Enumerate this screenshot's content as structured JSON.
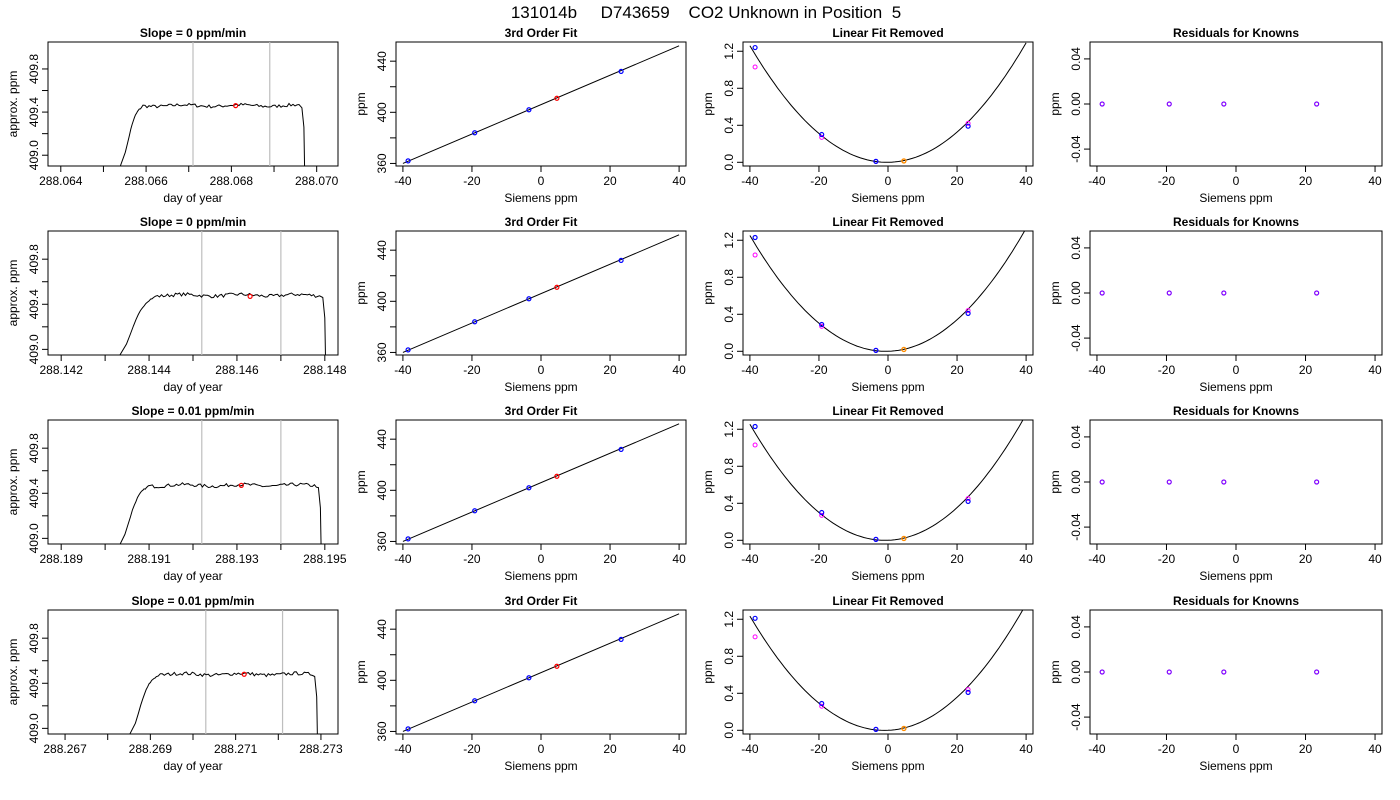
{
  "figure": {
    "title": "131014b     D743659    CO2 Unknown in Position  5"
  },
  "colors": {
    "trace": "#000000",
    "vline": "#bebebe",
    "known_fit": "#0000ff",
    "known_raw": "#ff00ff",
    "unknown_fit": "#ff8c00",
    "unknown_raw": "#ff0000",
    "residual": "#8000ff"
  },
  "chart_data": [
    {
      "type": "line",
      "panel": "trace",
      "row": 1,
      "title": "Slope =  0  ppm/min",
      "xlabel": "day of year",
      "ylabel": "approx. ppm",
      "xlim": [
        288.0637,
        288.0705
      ],
      "ylim": [
        408.9,
        410.05
      ],
      "xticks": [
        "288.064",
        "288.066",
        "288.068",
        "288.070"
      ],
      "yticks": [
        "409.0",
        "409.4",
        "409.8"
      ],
      "vlines": [
        288.0671,
        288.0689
      ],
      "marker": [
        288.0681,
        409.46
      ],
      "trace": {
        "x_start": 288.0654,
        "x_plateau": 288.0657,
        "x_end": 288.0697,
        "plateau": 409.46
      }
    },
    {
      "type": "scatter",
      "panel": "fit",
      "row": 1,
      "title": "3rd Order Fit",
      "xlabel": "Siemens ppm",
      "ylabel": "ppm",
      "xlim": [
        -42,
        42
      ],
      "ylim": [
        358,
        455
      ],
      "xticks": [
        "-40",
        "-20",
        "0",
        "20",
        "40"
      ],
      "yticks": [
        "360",
        "400",
        "440"
      ],
      "line": [
        [
          -40,
          360
        ],
        [
          40,
          452
        ]
      ],
      "knowns": [
        [
          -38.5,
          362
        ],
        [
          -19.2,
          384
        ],
        [
          -3.5,
          402
        ],
        [
          23.2,
          432
        ]
      ],
      "unknown": [
        4.6,
        411
      ]
    },
    {
      "type": "scatter",
      "panel": "linear",
      "row": 1,
      "title": "Linear Fit Removed",
      "xlabel": "Siemens ppm",
      "ylabel": "ppm",
      "xlim": [
        -42,
        42
      ],
      "ylim": [
        -0.04,
        1.3
      ],
      "xticks": [
        "-40",
        "-20",
        "0",
        "20",
        "40"
      ],
      "yticks": [
        "0.0",
        "0.4",
        "0.8",
        "1.2"
      ],
      "curve": {
        "a": 0.000797,
        "b": 0.000377,
        "x0": -40,
        "x1": 40
      },
      "knowns_fit": [
        [
          -38.5,
          1.24
        ],
        [
          -19.2,
          0.3
        ],
        [
          -3.5,
          0.01
        ],
        [
          23.2,
          0.39
        ]
      ],
      "knowns_raw": [
        [
          -38.5,
          1.03
        ],
        [
          -19.2,
          0.27
        ],
        [
          -3.5,
          0.01
        ],
        [
          23.2,
          0.42
        ]
      ],
      "unknown": [
        4.6,
        0.015
      ]
    },
    {
      "type": "scatter",
      "panel": "resid",
      "row": 1,
      "title": "Residuals for Knowns",
      "xlabel": "Siemens ppm",
      "ylabel": "ppm",
      "xlim": [
        -42,
        42
      ],
      "ylim": [
        -0.055,
        0.055
      ],
      "xticks": [
        "-40",
        "-20",
        "0",
        "20",
        "40"
      ],
      "yticks": [
        "-0.04",
        "0.00",
        "0.04"
      ],
      "points": [
        [
          -38.5,
          0
        ],
        [
          -19.2,
          0
        ],
        [
          -3.5,
          0
        ],
        [
          23.2,
          0
        ]
      ]
    },
    {
      "type": "line",
      "panel": "trace",
      "row": 2,
      "title": "Slope =  0  ppm/min",
      "xlabel": "day of year",
      "ylabel": "approx. ppm",
      "xlim": [
        288.1417,
        288.1483
      ],
      "ylim": [
        408.95,
        410.05
      ],
      "xticks": [
        "288.142",
        "288.144",
        "288.146",
        "288.148"
      ],
      "yticks": [
        "409.0",
        "409.4",
        "409.8"
      ],
      "vlines": [
        288.1452,
        288.147
      ],
      "marker": [
        288.1463,
        409.47
      ],
      "trace": {
        "x_start": 288.1433,
        "x_plateau": 288.1438,
        "x_end": 288.148,
        "plateau": 409.48
      }
    },
    {
      "type": "scatter",
      "panel": "fit",
      "row": 2,
      "title": "3rd Order Fit",
      "xlabel": "Siemens ppm",
      "ylabel": "ppm",
      "xlim": [
        -42,
        42
      ],
      "ylim": [
        358,
        455
      ],
      "xticks": [
        "-40",
        "-20",
        "0",
        "20",
        "40"
      ],
      "yticks": [
        "360",
        "400",
        "440"
      ],
      "line": [
        [
          -40,
          360
        ],
        [
          40,
          452
        ]
      ],
      "knowns": [
        [
          -38.5,
          362
        ],
        [
          -19.2,
          384
        ],
        [
          -3.5,
          402
        ],
        [
          23.2,
          432
        ]
      ],
      "unknown": [
        4.6,
        411
      ]
    },
    {
      "type": "scatter",
      "panel": "linear",
      "row": 2,
      "title": "Linear Fit Removed",
      "xlabel": "Siemens ppm",
      "ylabel": "ppm",
      "xlim": [
        -42,
        42
      ],
      "ylim": [
        -0.04,
        1.3
      ],
      "xticks": [
        "-40",
        "-20",
        "0",
        "20",
        "40"
      ],
      "yticks": [
        "0.0",
        "0.4",
        "0.8",
        "1.2"
      ],
      "curve": {
        "a": 0.000806,
        "b": 0.000955,
        "x0": -40,
        "x1": 40
      },
      "knowns_fit": [
        [
          -38.5,
          1.23
        ],
        [
          -19.2,
          0.29
        ],
        [
          -3.5,
          0.01
        ],
        [
          23.2,
          0.41
        ]
      ],
      "knowns_raw": [
        [
          -38.5,
          1.04
        ],
        [
          -19.2,
          0.27
        ],
        [
          -3.5,
          0.01
        ],
        [
          23.2,
          0.44
        ]
      ],
      "unknown": [
        4.6,
        0.02
      ]
    },
    {
      "type": "scatter",
      "panel": "resid",
      "row": 2,
      "title": "Residuals for Knowns",
      "xlabel": "Siemens ppm",
      "ylabel": "ppm",
      "xlim": [
        -42,
        42
      ],
      "ylim": [
        -0.055,
        0.055
      ],
      "xticks": [
        "-40",
        "-20",
        "0",
        "20",
        "40"
      ],
      "yticks": [
        "-0.04",
        "0.00",
        "0.04"
      ],
      "points": [
        [
          -38.5,
          0
        ],
        [
          -19.2,
          0
        ],
        [
          -3.5,
          0
        ],
        [
          23.2,
          0
        ]
      ]
    },
    {
      "type": "line",
      "panel": "trace",
      "row": 3,
      "title": "Slope =  0.01  ppm/min",
      "xlabel": "day of year",
      "ylabel": "approx. ppm",
      "xlim": [
        288.1887,
        288.1953
      ],
      "ylim": [
        408.95,
        410.05
      ],
      "xticks": [
        "288.189",
        "288.191",
        "288.193",
        "288.195"
      ],
      "yticks": [
        "409.0",
        "409.4",
        "409.8"
      ],
      "vlines": [
        288.1922,
        288.194
      ],
      "marker": [
        288.1931,
        409.47
      ],
      "trace": {
        "x_start": 288.1903,
        "x_plateau": 288.1907,
        "x_end": 288.1949,
        "plateau": 409.47
      }
    },
    {
      "type": "scatter",
      "panel": "fit",
      "row": 3,
      "title": "3rd Order Fit",
      "xlabel": "Siemens ppm",
      "ylabel": "ppm",
      "xlim": [
        -42,
        42
      ],
      "ylim": [
        358,
        455
      ],
      "xticks": [
        "-40",
        "-20",
        "0",
        "20",
        "40"
      ],
      "yticks": [
        "360",
        "400",
        "440"
      ],
      "line": [
        [
          -40,
          360
        ],
        [
          40,
          452
        ]
      ],
      "knowns": [
        [
          -38.5,
          362
        ],
        [
          -19.2,
          384
        ],
        [
          -3.5,
          402
        ],
        [
          23.2,
          432
        ]
      ],
      "unknown": [
        4.6,
        411
      ]
    },
    {
      "type": "scatter",
      "panel": "linear",
      "row": 3,
      "title": "Linear Fit Removed",
      "xlabel": "Siemens ppm",
      "ylabel": "ppm",
      "xlim": [
        -42,
        42
      ],
      "ylim": [
        -0.04,
        1.3
      ],
      "xticks": [
        "-40",
        "-20",
        "0",
        "20",
        "40"
      ],
      "yticks": [
        "0.0",
        "0.4",
        "0.8",
        "1.2"
      ],
      "curve": {
        "a": 0.000817,
        "b": 0.00133,
        "x0": -40,
        "x1": 40
      },
      "knowns_fit": [
        [
          -38.5,
          1.23
        ],
        [
          -19.2,
          0.3
        ],
        [
          -3.5,
          0.01
        ],
        [
          23.2,
          0.42
        ]
      ],
      "knowns_raw": [
        [
          -38.5,
          1.03
        ],
        [
          -19.2,
          0.27
        ],
        [
          -3.5,
          0.01
        ],
        [
          23.2,
          0.45
        ]
      ],
      "unknown": [
        4.6,
        0.02
      ]
    },
    {
      "type": "scatter",
      "panel": "resid",
      "row": 3,
      "title": "Residuals for Knowns",
      "xlabel": "Siemens ppm",
      "ylabel": "ppm",
      "xlim": [
        -42,
        42
      ],
      "ylim": [
        -0.055,
        0.055
      ],
      "xticks": [
        "-40",
        "-20",
        "0",
        "20",
        "40"
      ],
      "yticks": [
        "-0.04",
        "0.00",
        "0.04"
      ],
      "points": [
        [
          -38.5,
          0
        ],
        [
          -19.2,
          0
        ],
        [
          -3.5,
          0
        ],
        [
          23.2,
          0
        ]
      ]
    },
    {
      "type": "line",
      "panel": "trace",
      "row": 4,
      "title": "Slope =  0.01  ppm/min",
      "xlabel": "day of year",
      "ylabel": "approx. ppm",
      "xlim": [
        288.2666,
        288.2734
      ],
      "ylim": [
        408.95,
        410.05
      ],
      "xticks": [
        "288.267",
        "288.269",
        "288.271",
        "288.273"
      ],
      "yticks": [
        "409.0",
        "409.4",
        "409.8"
      ],
      "vlines": [
        288.2703,
        288.2721
      ],
      "marker": [
        288.2712,
        409.48
      ],
      "trace": {
        "x_start": 288.2685,
        "x_plateau": 288.2689,
        "x_end": 288.2729,
        "plateau": 409.48
      }
    },
    {
      "type": "scatter",
      "panel": "fit",
      "row": 4,
      "title": "3rd Order Fit",
      "xlabel": "Siemens ppm",
      "ylabel": "ppm",
      "xlim": [
        -42,
        42
      ],
      "ylim": [
        358,
        455
      ],
      "xticks": [
        "-40",
        "-20",
        "0",
        "20",
        "40"
      ],
      "yticks": [
        "360",
        "400",
        "440"
      ],
      "line": [
        [
          -40,
          360
        ],
        [
          40,
          452
        ]
      ],
      "knowns": [
        [
          -38.5,
          362
        ],
        [
          -19.2,
          384
        ],
        [
          -3.5,
          402
        ],
        [
          23.2,
          432
        ]
      ],
      "unknown": [
        4.6,
        411
      ]
    },
    {
      "type": "scatter",
      "panel": "linear",
      "row": 4,
      "title": "Linear Fit Removed",
      "xlabel": "Siemens ppm",
      "ylabel": "ppm",
      "xlim": [
        -42,
        42
      ],
      "ylim": [
        -0.04,
        1.3
      ],
      "xticks": [
        "-40",
        "-20",
        "0",
        "20",
        "40"
      ],
      "yticks": [
        "0.0",
        "0.4",
        "0.8",
        "1.2"
      ],
      "curve": {
        "a": 0.000812,
        "b": 0.00162,
        "x0": -40,
        "x1": 40
      },
      "knowns_fit": [
        [
          -38.5,
          1.21
        ],
        [
          -19.2,
          0.29
        ],
        [
          -3.5,
          0.01
        ],
        [
          23.2,
          0.41
        ]
      ],
      "knowns_raw": [
        [
          -38.5,
          1.01
        ],
        [
          -19.2,
          0.26
        ],
        [
          -3.5,
          0.01
        ],
        [
          23.2,
          0.44
        ]
      ],
      "unknown": [
        4.6,
        0.02
      ]
    },
    {
      "type": "scatter",
      "panel": "resid",
      "row": 4,
      "title": "Residuals for Knowns",
      "xlabel": "Siemens ppm",
      "ylabel": "ppm",
      "xlim": [
        -42,
        42
      ],
      "ylim": [
        -0.055,
        0.055
      ],
      "xticks": [
        "-40",
        "-20",
        "0",
        "20",
        "40"
      ],
      "yticks": [
        "-0.04",
        "0.00",
        "0.04"
      ],
      "points": [
        [
          -38.5,
          0
        ],
        [
          -19.2,
          0
        ],
        [
          -3.5,
          0
        ],
        [
          23.2,
          0
        ]
      ]
    }
  ]
}
